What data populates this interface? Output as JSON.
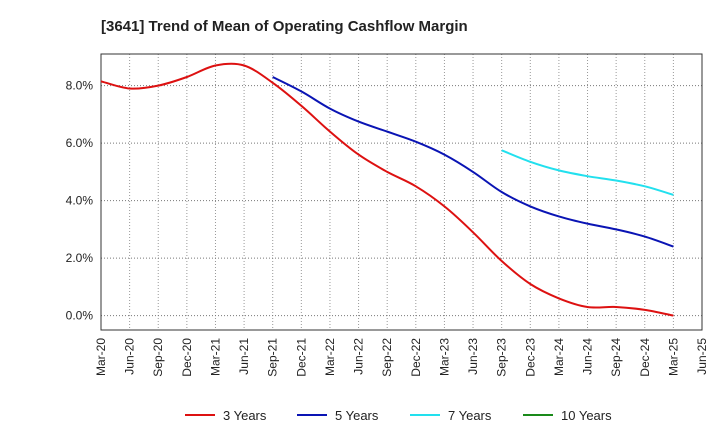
{
  "chart_data": {
    "type": "line",
    "title": "[3641]  Trend of Mean of Operating Cashflow Margin",
    "xlabel": "",
    "ylabel": "",
    "x": [
      "Mar-20",
      "Jun-20",
      "Sep-20",
      "Dec-20",
      "Mar-21",
      "Jun-21",
      "Sep-21",
      "Dec-21",
      "Mar-22",
      "Jun-22",
      "Sep-22",
      "Dec-22",
      "Mar-23",
      "Jun-23",
      "Sep-23",
      "Dec-23",
      "Mar-24",
      "Jun-24",
      "Sep-24",
      "Dec-24",
      "Mar-25",
      "Jun-25"
    ],
    "ylim": [
      -0.5,
      9.1
    ],
    "yticks": [
      0,
      2,
      4,
      6,
      8
    ],
    "ytick_labels": [
      "0.0%",
      "2.0%",
      "4.0%",
      "6.0%",
      "8.0%"
    ],
    "grid": true,
    "legend_position": "bottom",
    "series": [
      {
        "name": "3 Years",
        "color": "#dd1111",
        "values": [
          8.15,
          7.9,
          8.0,
          8.3,
          8.7,
          8.7,
          8.1,
          7.3,
          6.4,
          5.6,
          5.0,
          4.5,
          3.8,
          2.9,
          1.9,
          1.1,
          0.6,
          0.3,
          0.3,
          0.2,
          0.0,
          null
        ]
      },
      {
        "name": "5 Years",
        "color": "#0a14b4",
        "values": [
          null,
          null,
          null,
          null,
          null,
          null,
          8.3,
          7.8,
          7.2,
          6.75,
          6.4,
          6.05,
          5.6,
          5.0,
          4.3,
          3.8,
          3.45,
          3.2,
          3.0,
          2.75,
          2.4,
          null
        ]
      },
      {
        "name": "7 Years",
        "color": "#22e0ee",
        "values": [
          null,
          null,
          null,
          null,
          null,
          null,
          null,
          null,
          null,
          null,
          null,
          null,
          null,
          null,
          5.75,
          5.35,
          5.05,
          4.85,
          4.7,
          4.5,
          4.2,
          null
        ]
      },
      {
        "name": "10 Years",
        "color": "#1a8a1a",
        "values": [
          null,
          null,
          null,
          null,
          null,
          null,
          null,
          null,
          null,
          null,
          null,
          null,
          null,
          null,
          null,
          null,
          null,
          null,
          null,
          null,
          null,
          null
        ]
      }
    ]
  }
}
